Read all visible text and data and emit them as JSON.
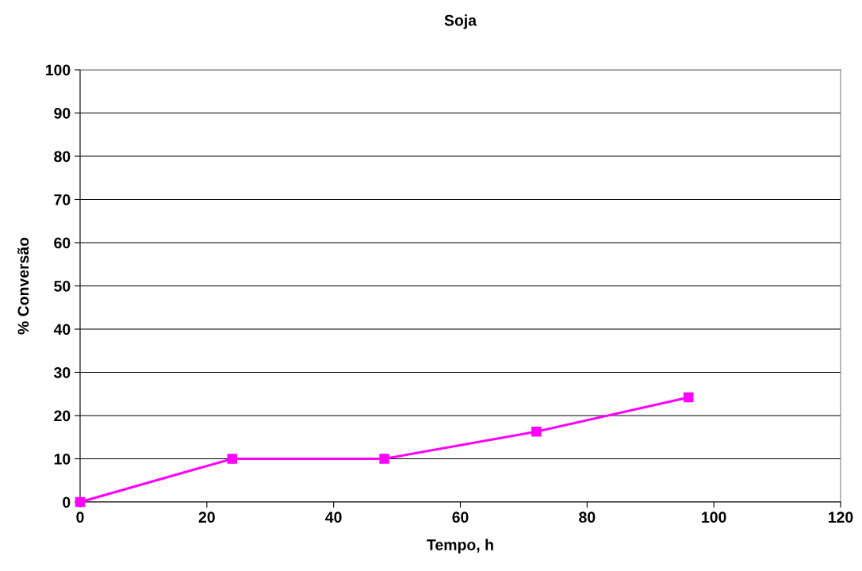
{
  "chart_data": {
    "type": "line",
    "title": "Soja",
    "xlabel": "Tempo, h",
    "ylabel": "% Conversão",
    "x": [
      0,
      24,
      48,
      72,
      96
    ],
    "series": [
      {
        "color": "#ff00ff",
        "values": [
          0,
          10,
          10,
          16.3,
          24.2
        ]
      }
    ],
    "xlim": [
      0,
      120
    ],
    "xticks": [
      0,
      20,
      40,
      60,
      80,
      100,
      120
    ],
    "ylim": [
      0,
      100
    ],
    "yticks": [
      0,
      10,
      20,
      30,
      40,
      50,
      60,
      70,
      80,
      90,
      100
    ],
    "grid": "y",
    "marker": "square",
    "line_style": "solid"
  }
}
